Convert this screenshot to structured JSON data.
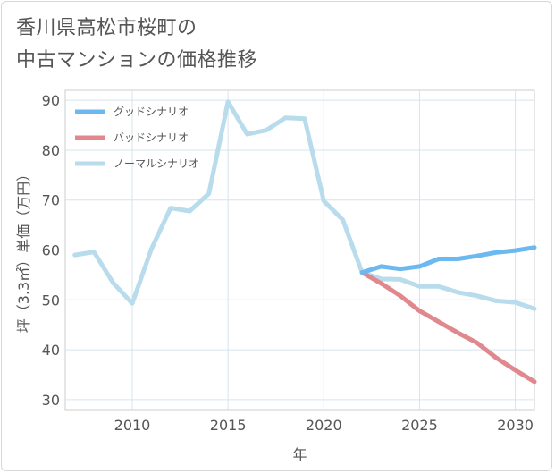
{
  "title": "香川県高松市桜町の\n中古マンションの価格推移",
  "chart_data": {
    "type": "line",
    "xlabel": "年",
    "ylabel": "坪（3.3㎡）単価（万円）",
    "xlim": [
      2006.5,
      2031
    ],
    "ylim": [
      28,
      92
    ],
    "xticks": [
      2010,
      2015,
      2020,
      2025,
      2030
    ],
    "yticks": [
      30,
      40,
      50,
      60,
      70,
      80,
      90
    ],
    "grid": true,
    "legend_position": "top-left",
    "series": [
      {
        "name": "グッドシナリオ",
        "color": "#6cb8f0",
        "points": [
          [
            2022,
            55.5
          ],
          [
            2023,
            56.7
          ],
          [
            2024,
            56.2
          ],
          [
            2025,
            56.7
          ],
          [
            2026,
            58.2
          ],
          [
            2027,
            58.2
          ],
          [
            2028,
            58.8
          ],
          [
            2029,
            59.5
          ],
          [
            2030,
            59.9
          ],
          [
            2031,
            60.5
          ]
        ]
      },
      {
        "name": "バッドシナリオ",
        "color": "#e0888e",
        "points": [
          [
            2022,
            55.5
          ],
          [
            2023,
            53.3
          ],
          [
            2024,
            50.8
          ],
          [
            2025,
            47.8
          ],
          [
            2026,
            45.6
          ],
          [
            2027,
            43.4
          ],
          [
            2028,
            41.4
          ],
          [
            2029,
            38.4
          ],
          [
            2030,
            35.9
          ],
          [
            2031,
            33.6
          ]
        ]
      },
      {
        "name": "ノーマルシナリオ",
        "color": "#b8dcec",
        "points": [
          [
            2007,
            59.0
          ],
          [
            2008,
            59.6
          ],
          [
            2009,
            53.4
          ],
          [
            2010,
            49.3
          ],
          [
            2011,
            60.2
          ],
          [
            2012,
            68.4
          ],
          [
            2013,
            67.8
          ],
          [
            2014,
            71.3
          ],
          [
            2015,
            89.7
          ],
          [
            2016,
            83.2
          ],
          [
            2017,
            84.0
          ],
          [
            2018,
            86.5
          ],
          [
            2019,
            86.3
          ],
          [
            2020,
            69.8
          ],
          [
            2021,
            66.0
          ],
          [
            2022,
            55.5
          ],
          [
            2023,
            54.2
          ],
          [
            2024,
            54.1
          ],
          [
            2025,
            52.7
          ],
          [
            2026,
            52.7
          ],
          [
            2027,
            51.5
          ],
          [
            2028,
            50.8
          ],
          [
            2029,
            49.8
          ],
          [
            2030,
            49.5
          ],
          [
            2031,
            48.2
          ]
        ]
      }
    ]
  }
}
